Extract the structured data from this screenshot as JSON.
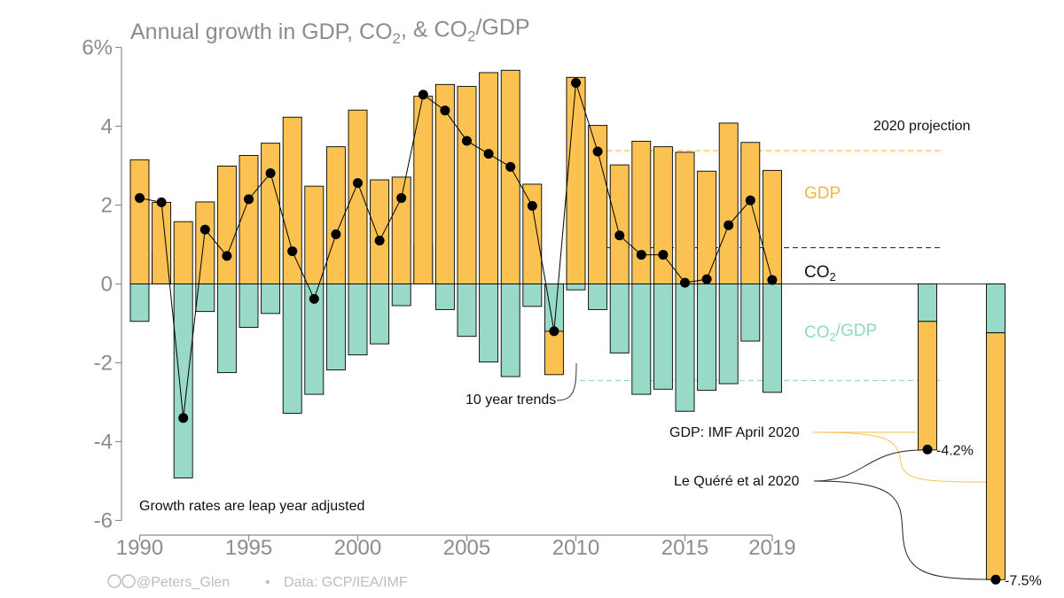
{
  "colors": {
    "gdp": "#fbc252",
    "co2_gdp": "#98d9c8",
    "co2_line": "#000000",
    "axis_text": "#8c8c8c",
    "gdp_label": "#f7b63c",
    "co2gdp_label": "#8fd8c6"
  },
  "chart_data": {
    "type": "bar",
    "title_parts": [
      "Annual growth in GDP, CO",
      "2",
      ", & CO",
      "2",
      "/GDP"
    ],
    "ylim": [
      -6,
      6
    ],
    "yticks": [
      "6%",
      "4",
      "2",
      "0",
      "-2",
      "-4",
      "-6"
    ],
    "xticks": [
      "1990",
      "1995",
      "2000",
      "2005",
      "2010",
      "2015",
      "2019"
    ],
    "years": [
      1990,
      1991,
      1992,
      1993,
      1994,
      1995,
      1996,
      1997,
      1998,
      1999,
      2000,
      2001,
      2002,
      2003,
      2004,
      2005,
      2006,
      2007,
      2008,
      2009,
      2010,
      2011,
      2012,
      2013,
      2014,
      2015,
      2016,
      2017,
      2018,
      2019
    ],
    "series": [
      {
        "name": "GDP",
        "kind": "bar",
        "values": [
          3.15,
          2.07,
          1.58,
          2.08,
          2.99,
          3.26,
          3.57,
          4.23,
          2.48,
          3.48,
          4.41,
          2.64,
          2.71,
          4.76,
          5.06,
          5.01,
          5.36,
          5.42,
          2.53,
          -1.1,
          5.24,
          4.02,
          3.02,
          3.62,
          3.48,
          3.34,
          2.86,
          4.08,
          3.59,
          2.88
        ]
      },
      {
        "name": "CO2/GDP",
        "kind": "bar",
        "values": [
          -0.95,
          0.83,
          -4.92,
          -0.7,
          -2.25,
          -1.1,
          -0.75,
          -3.28,
          -2.8,
          -2.18,
          -1.8,
          -1.52,
          -0.55,
          0.99,
          -0.65,
          -1.33,
          -1.98,
          -2.35,
          -0.57,
          -1.2,
          -0.15,
          -0.65,
          -1.75,
          -2.8,
          -2.67,
          -3.23,
          -2.7,
          -2.53,
          -1.45,
          -2.75
        ]
      },
      {
        "name": "CO2",
        "kind": "line",
        "values": [
          2.18,
          2.07,
          -3.4,
          1.38,
          0.71,
          2.15,
          2.81,
          0.83,
          -0.38,
          1.26,
          2.56,
          1.1,
          2.18,
          4.8,
          4.4,
          3.63,
          3.3,
          2.97,
          1.98,
          -1.2,
          5.1,
          3.36,
          1.23,
          0.74,
          0.74,
          0.03,
          0.12,
          1.49,
          2.12,
          0.1
        ]
      }
    ],
    "trends_10yr": {
      "gdp": 3.38,
      "co2": 0.92,
      "co2_gdp": -2.45
    },
    "projections": [
      {
        "co2_gdp": -0.95,
        "gdp": -3.26,
        "co2": -4.2,
        "label": "-4.2%"
      },
      {
        "co2_gdp": -1.24,
        "gdp": -6.26,
        "co2": -7.5,
        "label": "-7.5%"
      }
    ],
    "imf_gdp_value": -3.75,
    "lequere_value": -5.0,
    "labels": {
      "gdp": "GDP",
      "co2": [
        "CO",
        "2"
      ],
      "co2_gdp": [
        "CO",
        "2",
        "/GDP"
      ],
      "projection": "2020 projection",
      "trends": "10 year trends",
      "imf": "GDP: IMF April 2020",
      "lequere": "Le Quéré et al 2020",
      "leap": "Growth rates are leap year adjusted"
    }
  },
  "footer": {
    "icons": "cc-by-icons",
    "handle": "@Peters_Glen",
    "separator": "•",
    "source": "Data: GCP/IEA/IMF"
  }
}
